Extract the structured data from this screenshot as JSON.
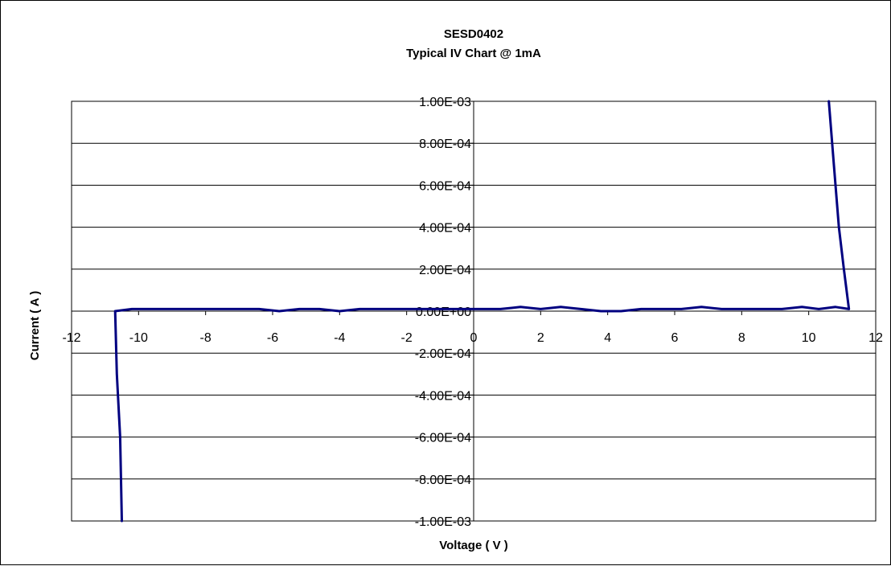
{
  "chart_data": {
    "type": "line",
    "title": "SESD0402",
    "subtitle": "Typical IV Chart @ 1mA",
    "xlabel": "Voltage ( V )",
    "ylabel": "Current ( A )",
    "xlim": [
      -12,
      12
    ],
    "ylim": [
      -0.001,
      0.001
    ],
    "x_ticks": [
      -12,
      -10,
      -8,
      -6,
      -4,
      -2,
      0,
      2,
      4,
      6,
      8,
      10,
      12
    ],
    "x_tick_labels": [
      "-12",
      "-10",
      "-8",
      "-6",
      "-4",
      "-2",
      "0",
      "2",
      "4",
      "6",
      "8",
      "10",
      "12"
    ],
    "y_ticks": [
      0.001,
      0.0008,
      0.0006,
      0.0004,
      0.0002,
      0,
      -0.0002,
      -0.0004,
      -0.0006,
      -0.0008,
      -0.001
    ],
    "y_tick_labels": [
      "1.00E-03",
      "8.00E-04",
      "6.00E-04",
      "4.00E-04",
      "2.00E-04",
      "0.00E+00",
      "-2.00E-04",
      "-4.00E-04",
      "-6.00E-04",
      "-8.00E-04",
      "-1.00E-03"
    ],
    "grid": {
      "horizontal": true,
      "vertical": false
    },
    "line_color": "#000080",
    "series": [
      {
        "name": "",
        "x": [
          -10.5,
          -10.55,
          -10.65,
          -10.7,
          -10.2,
          -9.8,
          -9.2,
          -8.6,
          -8.0,
          -7.4,
          -6.8,
          -6.4,
          -5.8,
          -5.2,
          -4.6,
          -4.0,
          -3.4,
          -2.8,
          -2.2,
          -1.6,
          -1.0,
          -0.4,
          0.2,
          0.8,
          1.4,
          2.0,
          2.6,
          3.2,
          3.8,
          4.4,
          5.0,
          5.6,
          6.2,
          6.8,
          7.4,
          8.0,
          8.6,
          9.2,
          9.8,
          10.3,
          10.8,
          11.2,
          11.05,
          10.9,
          10.75,
          10.6
        ],
        "y": [
          -0.001,
          -0.0006,
          -0.0003,
          0.0,
          1e-05,
          1e-05,
          1e-05,
          1e-05,
          1e-05,
          1e-05,
          1e-05,
          1e-05,
          0.0,
          1e-05,
          1e-05,
          0.0,
          1e-05,
          1e-05,
          1e-05,
          1e-05,
          1e-05,
          1e-05,
          1e-05,
          1e-05,
          2e-05,
          1e-05,
          2e-05,
          1e-05,
          0.0,
          0.0,
          1e-05,
          1e-05,
          1e-05,
          2e-05,
          1e-05,
          1e-05,
          1e-05,
          1e-05,
          2e-05,
          1e-05,
          2e-05,
          1e-05,
          0.0002,
          0.0004,
          0.0007,
          0.001
        ]
      }
    ]
  }
}
